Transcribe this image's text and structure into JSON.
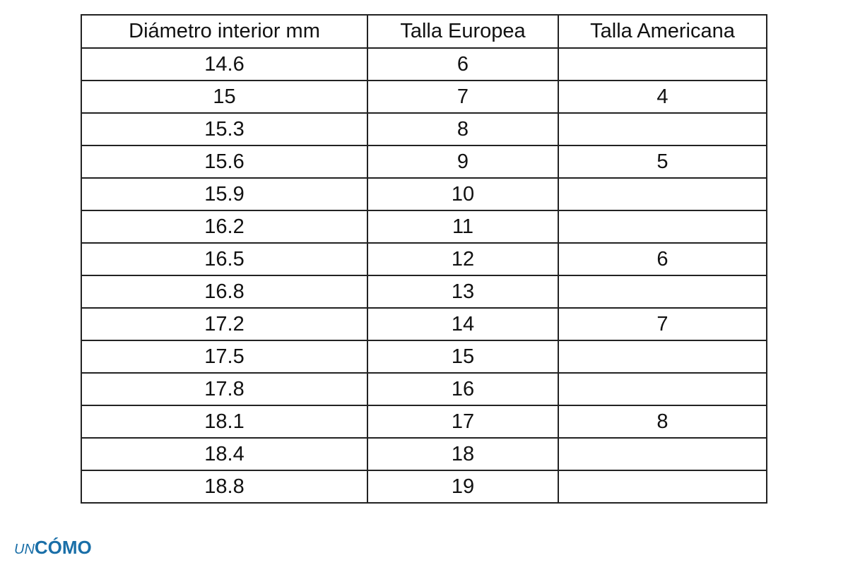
{
  "table": {
    "header": [
      "Diámetro interior mm",
      "Talla Europea",
      "Talla Americana"
    ],
    "rows": [
      [
        "14.6",
        "6",
        null
      ],
      [
        "15",
        "7",
        "4"
      ],
      [
        "15.3",
        "8",
        null
      ],
      [
        "15.6",
        "9",
        "5"
      ],
      [
        "15.9",
        "10",
        null
      ],
      [
        "16.2",
        "11",
        null
      ],
      [
        "16.5",
        "12",
        "6"
      ],
      [
        "16.8",
        "13",
        null
      ],
      [
        "17.2",
        "14",
        "7"
      ],
      [
        "17.5",
        "15",
        null
      ],
      [
        "17.8",
        "16",
        null
      ],
      [
        "18.1",
        "17",
        "8"
      ],
      [
        "18.4",
        "18",
        null
      ],
      [
        "18.8",
        "19",
        null
      ]
    ]
  },
  "logo": {
    "prefix": "UN",
    "name": "CÓMO"
  }
}
